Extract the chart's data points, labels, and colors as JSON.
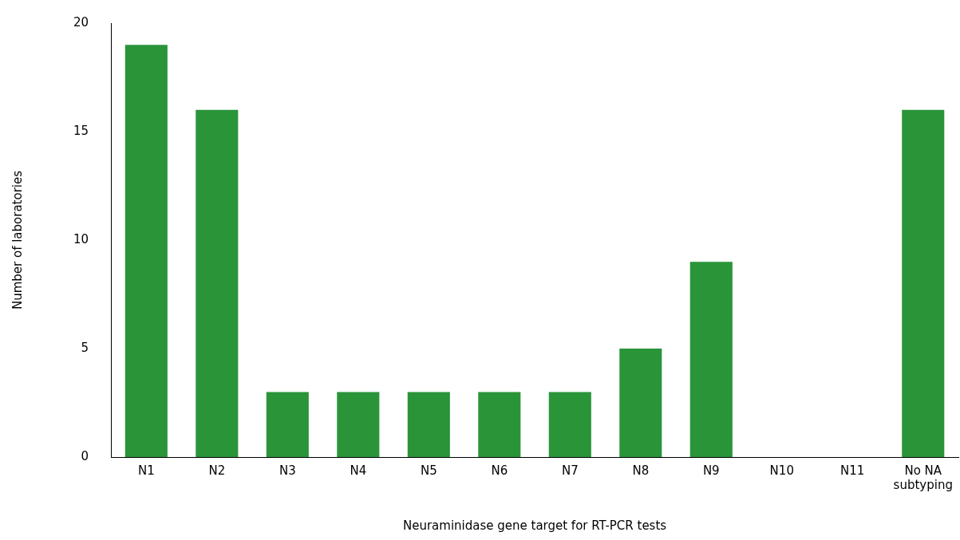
{
  "chart_data": {
    "type": "bar",
    "xlabel": "Neuraminidase gene target for RT-PCR tests",
    "ylabel": "Number of laboratories",
    "categories": [
      "N1",
      "N2",
      "N3",
      "N4",
      "N5",
      "N6",
      "N7",
      "N8",
      "N9",
      "N10",
      "N11",
      "No NA subtyping"
    ],
    "values": [
      19,
      16,
      3,
      3,
      3,
      3,
      3,
      5,
      9,
      0,
      0,
      16
    ],
    "color": "#2a9439",
    "ylim": [
      0,
      20
    ],
    "yticks": [
      0,
      5,
      10,
      15,
      20
    ],
    "grid": false,
    "legend": false
  }
}
